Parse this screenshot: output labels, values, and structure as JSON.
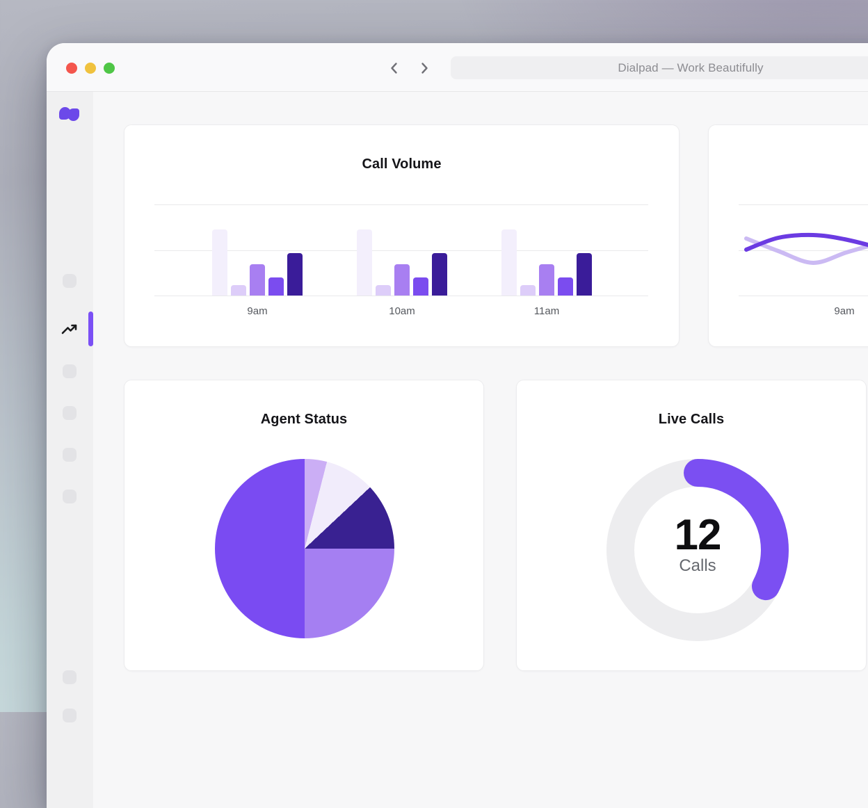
{
  "browser": {
    "title_text": "Dialpad — Work Beautifully"
  },
  "cards": {
    "call_volume": {
      "title": "Call Volume"
    },
    "hourly_trend": {
      "x_tick": "9am"
    },
    "agent_status": {
      "title": "Agent Status"
    },
    "live_calls": {
      "title": "Live Calls",
      "value": "12",
      "unit": "Calls"
    }
  },
  "colors": {
    "accent_purple": "#7B4CEF",
    "dark_indigo": "#3A1C99",
    "medium_purple": "#A87FF1",
    "light_lilac": "#DDCDF9",
    "pale_lavender": "#F3EFFC",
    "sidebar_indicator": "#7B50F5",
    "traffic_close": "#F4564D",
    "traffic_minimize": "#F0C23E",
    "traffic_maximize": "#4FC646"
  },
  "chart_data": [
    {
      "type": "bar",
      "title": "Call Volume",
      "categories": [
        "9am",
        "10am",
        "11am"
      ],
      "series": [
        {
          "color": "#F3EFFC",
          "values": [
            95,
            95,
            95
          ]
        },
        {
          "color": "#DDCDF9",
          "values": [
            15,
            15,
            15
          ]
        },
        {
          "color": "#A87FF1",
          "values": [
            45,
            45,
            45
          ]
        },
        {
          "color": "#7B4CEF",
          "values": [
            26,
            26,
            26
          ]
        },
        {
          "color": "#3A1C99",
          "values": [
            61,
            61,
            61
          ]
        }
      ],
      "ylim": [
        0,
        131
      ],
      "grid": true,
      "legend": "none"
    },
    {
      "type": "line",
      "categories": [
        "9am"
      ],
      "series": [
        {
          "color": "#6B3BE2",
          "points": [
            [
              54,
              179
            ],
            [
              100,
              162
            ],
            [
              150,
              158
            ],
            [
              195,
              164
            ],
            [
              240,
              175
            ]
          ]
        },
        {
          "color": "#CBBAF3",
          "points": [
            [
              54,
              163
            ],
            [
              100,
              181
            ],
            [
              150,
              198
            ],
            [
              198,
              183
            ],
            [
              240,
              171
            ]
          ]
        }
      ],
      "grid": true,
      "legend": "none"
    },
    {
      "type": "pie",
      "title": "Agent Status",
      "slices": [
        {
          "value": 4,
          "color": "#CBAEF5"
        },
        {
          "value": 9,
          "color": "#F1ECFB"
        },
        {
          "value": 12,
          "color": "#392191"
        },
        {
          "value": 25,
          "color": "#A57FF2"
        },
        {
          "value": 50,
          "color": "#7A4BF2"
        }
      ],
      "start_angle_deg": 0,
      "legend": "none"
    },
    {
      "type": "donut",
      "title": "Live Calls",
      "value": 12,
      "unit": "Calls",
      "sweep_deg": 118,
      "arc_color": "#7B4FF2",
      "track_color": "#EDEDEF"
    }
  ]
}
